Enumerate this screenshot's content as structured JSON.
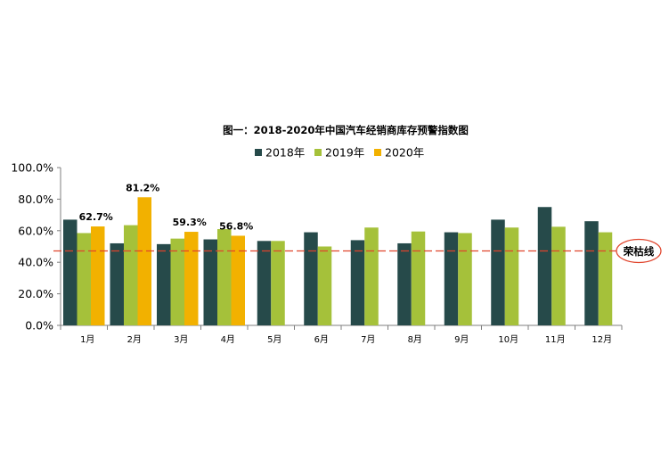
{
  "chart_data": {
    "type": "bar",
    "title": "图一：2018-2020年中国汽车经销商库存预警指数图",
    "categories": [
      "1月",
      "2月",
      "3月",
      "4月",
      "5月",
      "6月",
      "7月",
      "8月",
      "9月",
      "10月",
      "11月",
      "12月"
    ],
    "series": [
      {
        "name": "2018年",
        "color": "#264a4a",
        "values": [
          67.0,
          52.0,
          51.5,
          54.5,
          53.5,
          59.0,
          54.0,
          52.0,
          59.0,
          67.0,
          75.0,
          66.0
        ]
      },
      {
        "name": "2019年",
        "color": "#a5c13a",
        "values": [
          58.5,
          63.5,
          55.0,
          61.0,
          53.5,
          50.0,
          62.0,
          59.5,
          58.5,
          62.0,
          62.5,
          59.0
        ]
      },
      {
        "name": "2020年",
        "color": "#f2b100",
        "values": [
          62.7,
          81.2,
          59.3,
          56.8,
          null,
          null,
          null,
          null,
          null,
          null,
          null,
          null
        ]
      }
    ],
    "data_labels": [
      {
        "series": 2,
        "index": 0,
        "text": "62.7%"
      },
      {
        "series": 2,
        "index": 1,
        "text": "81.2%"
      },
      {
        "series": 2,
        "index": 2,
        "text": "59.3%"
      },
      {
        "series": 2,
        "index": 3,
        "text": "56.8%"
      }
    ],
    "y_ticks": [
      "0.0%",
      "20.0%",
      "40.0%",
      "60.0%",
      "80.0%",
      "100.0%"
    ],
    "ylim": [
      0,
      100
    ],
    "legend_position": "top-center",
    "reference_line": {
      "value": 50,
      "label": "荣枯线",
      "color": "#e0442c"
    },
    "grid": false
  }
}
